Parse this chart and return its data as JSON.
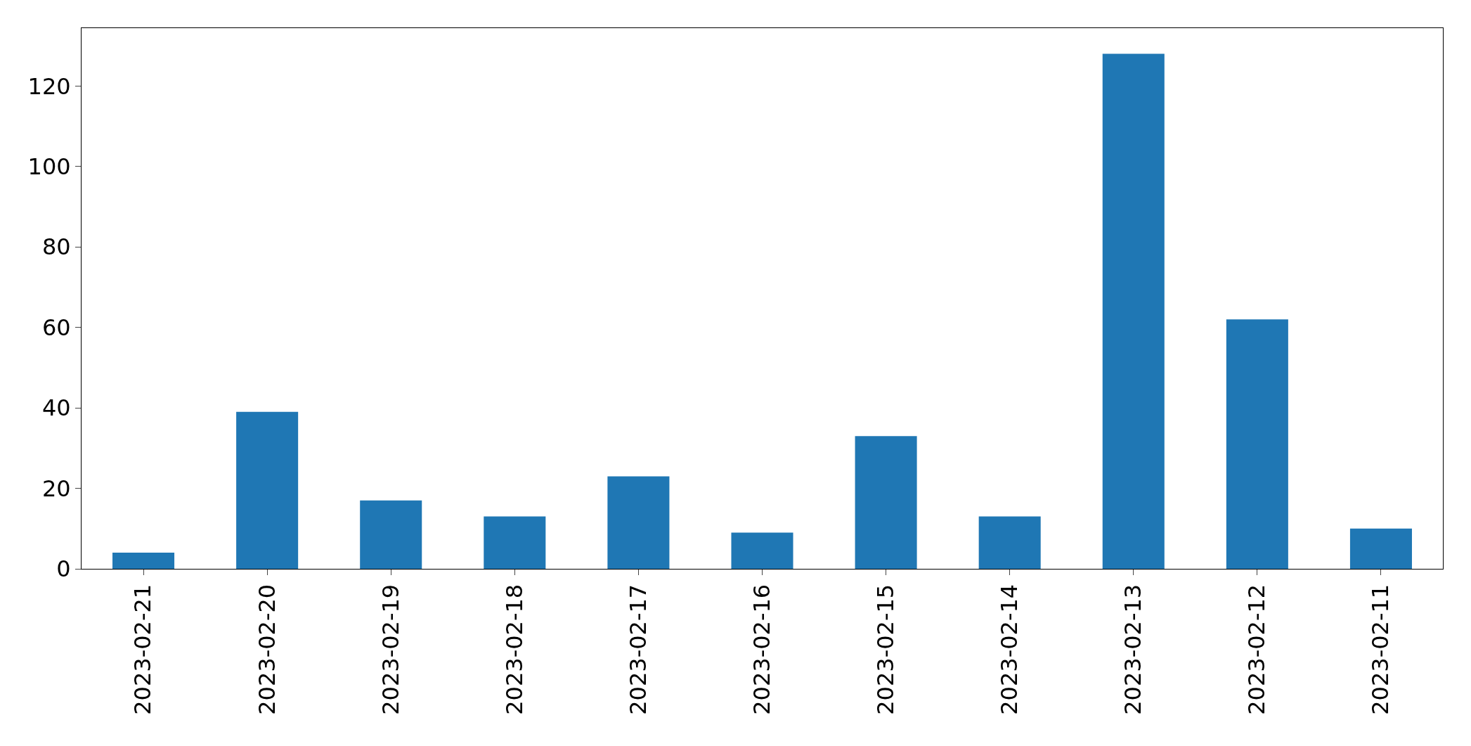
{
  "chart_data": {
    "type": "bar",
    "categories": [
      "2023-02-21",
      "2023-02-20",
      "2023-02-19",
      "2023-02-18",
      "2023-02-17",
      "2023-02-16",
      "2023-02-15",
      "2023-02-14",
      "2023-02-13",
      "2023-02-12",
      "2023-02-11"
    ],
    "values": [
      4,
      39,
      17,
      13,
      23,
      9,
      33,
      13,
      128,
      62,
      10
    ],
    "color": "#1f77b4",
    "ylim": [
      0,
      134.4
    ],
    "yticks": [
      0,
      20,
      40,
      60,
      80,
      100,
      120
    ],
    "grid": false
  }
}
